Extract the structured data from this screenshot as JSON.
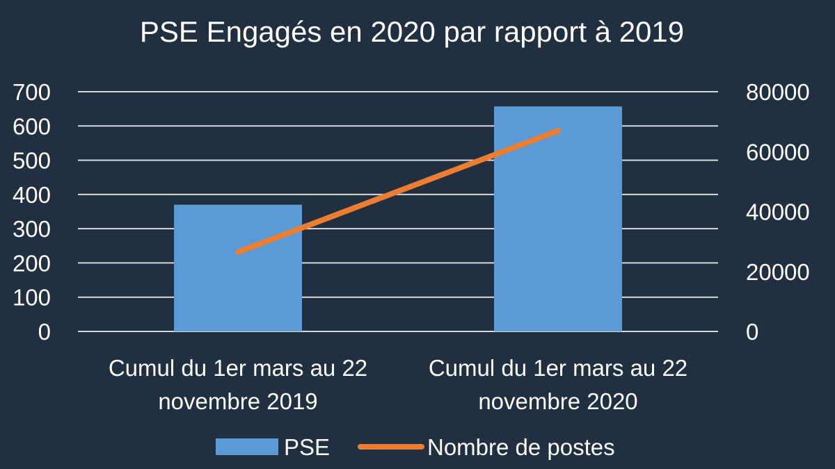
{
  "chart_data": {
    "type": "bar",
    "title": "PSE Engagés en 2020 par rapport à 2019",
    "categories": [
      [
        "Cumul du 1er  mars au 22",
        "novembre 2019"
      ],
      [
        "Cumul du 1er  mars au 22",
        "novembre 2020"
      ]
    ],
    "series": [
      {
        "name": "PSE",
        "type": "bar",
        "axis": "left",
        "color": "#5b9bd5",
        "values": [
          370,
          657
        ]
      },
      {
        "name": "Nombre de postes",
        "type": "line",
        "axis": "right",
        "color": "#ed7d31",
        "values": [
          26500,
          67000
        ]
      }
    ],
    "y_left": {
      "min": 0,
      "max": 700,
      "step": 100,
      "ticks": [
        "0",
        "100",
        "200",
        "300",
        "400",
        "500",
        "600",
        "700"
      ]
    },
    "y_right": {
      "min": 0,
      "max": 80000,
      "step": 20000,
      "ticks": [
        "0",
        "20000",
        "40000",
        "60000",
        "80000"
      ]
    },
    "grid": true,
    "legend": "bottom",
    "background": "#203040",
    "gridline_color": "#d9d9d9"
  }
}
